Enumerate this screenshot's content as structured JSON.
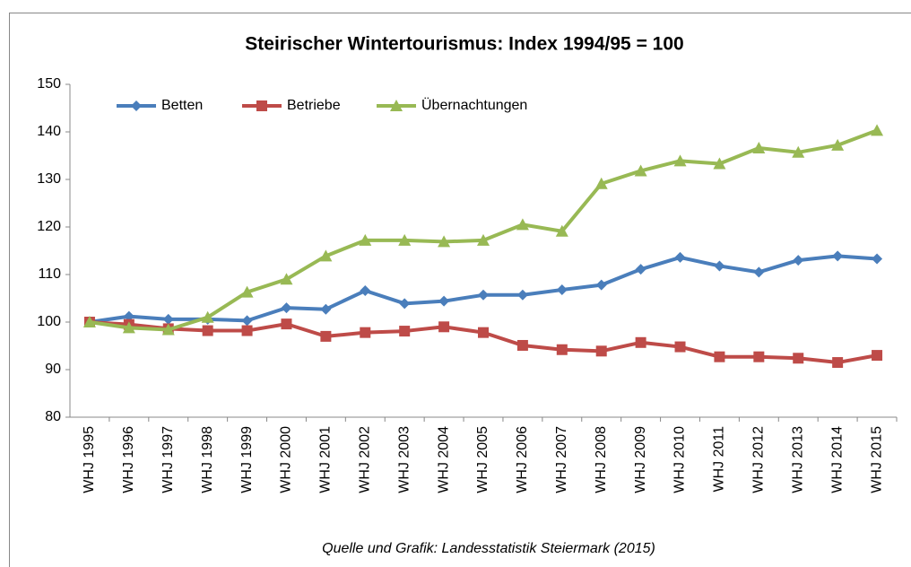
{
  "chart_data": {
    "type": "line",
    "title": "Steirischer Wintertourismus: Index 1994/95 = 100",
    "source": "Quelle und Grafik: Landesstatistik Steiermark (2015)",
    "categories": [
      "WHJ 1995",
      "WHJ 1996",
      "WHJ 1997",
      "WHJ 1998",
      "WHJ 1999",
      "WHJ 2000",
      "WHJ 2001",
      "WHJ 2002",
      "WHJ 2003",
      "WHJ 2004",
      "WHJ 2005",
      "WHJ 2006",
      "WHJ 2007",
      "WHJ 2008",
      "WHJ 2009",
      "WHJ 2010",
      "WHJ 2011",
      "WHJ 2012",
      "WHJ 2013",
      "WHJ 2014",
      "WHJ 2015"
    ],
    "series": [
      {
        "name": "Betten",
        "color": "#4a7ebb",
        "marker": "diamond",
        "values": [
          100,
          101.2,
          100.6,
          100.6,
          100.3,
          103,
          102.7,
          106.6,
          103.9,
          104.4,
          105.7,
          105.7,
          106.8,
          107.8,
          111.1,
          113.6,
          111.8,
          110.5,
          113,
          113.9,
          113.3
        ]
      },
      {
        "name": "Betriebe",
        "color": "#be4b48",
        "marker": "square",
        "values": [
          100,
          99.5,
          98.6,
          98.2,
          98.2,
          99.6,
          97,
          97.8,
          98.1,
          99,
          97.8,
          95.1,
          94.2,
          93.9,
          95.7,
          94.8,
          92.7,
          92.7,
          92.4,
          91.5,
          93
        ]
      },
      {
        "name": "Übernachtungen",
        "color": "#98b954",
        "marker": "triangle",
        "values": [
          100,
          98.8,
          98.4,
          101,
          106.3,
          109,
          113.9,
          117.2,
          117.2,
          116.9,
          117.2,
          120.5,
          119.1,
          129.1,
          131.8,
          133.9,
          133.3,
          136.6,
          135.7,
          137.2,
          140.3
        ]
      }
    ],
    "ylim": [
      80,
      150
    ],
    "yticks": [
      80,
      90,
      100,
      110,
      120,
      130,
      140,
      150
    ],
    "legend": "top-left"
  }
}
